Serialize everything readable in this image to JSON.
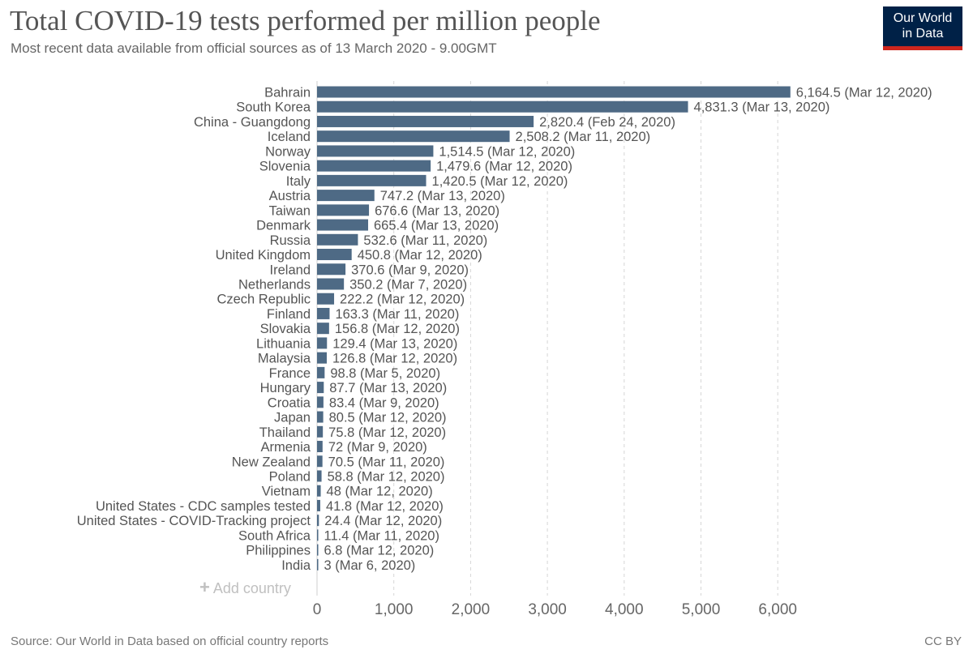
{
  "header": {
    "title": "Total COVID-19 tests performed per million people",
    "subtitle": "Most recent data available from official sources as of 13 March 2020 - 9.00GMT"
  },
  "logo": {
    "line1": "Our World",
    "line2": "in Data",
    "bg_color": "#002147",
    "accent_color": "#ce261e"
  },
  "controls": {
    "add_country_label": "Add country",
    "add_icon": "plus-icon"
  },
  "footer": {
    "source": "Source: Our World in Data based on official country reports",
    "license": "CC BY"
  },
  "chart_data": {
    "type": "bar",
    "orientation": "horizontal",
    "bar_color": "#4e6a85",
    "grid": true,
    "xlim": [
      0,
      6400
    ],
    "xticks": [
      0,
      1000,
      2000,
      3000,
      4000,
      5000,
      6000
    ],
    "xtick_labels": [
      "0",
      "1,000",
      "2,000",
      "3,000",
      "4,000",
      "5,000",
      "6,000"
    ],
    "categories": [
      "Bahrain",
      "South Korea",
      "China - Guangdong",
      "Iceland",
      "Norway",
      "Slovenia",
      "Italy",
      "Austria",
      "Taiwan",
      "Denmark",
      "Russia",
      "United Kingdom",
      "Ireland",
      "Netherlands",
      "Czech Republic",
      "Finland",
      "Slovakia",
      "Lithuania",
      "Malaysia",
      "France",
      "Hungary",
      "Croatia",
      "Japan",
      "Thailand",
      "Armenia",
      "New Zealand",
      "Poland",
      "Vietnam",
      "United States - CDC samples tested",
      "United States - COVID-Tracking project",
      "South Africa",
      "Philippines",
      "India"
    ],
    "values": [
      6164.5,
      4831.3,
      2820.4,
      2508.2,
      1514.5,
      1479.6,
      1420.5,
      747.2,
      676.6,
      665.4,
      532.6,
      450.8,
      370.6,
      350.2,
      222.2,
      163.3,
      156.8,
      129.4,
      126.8,
      98.8,
      87.7,
      83.4,
      80.5,
      75.8,
      72,
      70.5,
      58.8,
      48,
      41.8,
      24.4,
      11.4,
      6.8,
      3
    ],
    "data_labels": [
      "6,164.5 (Mar 12, 2020)",
      "4,831.3 (Mar 13, 2020)",
      "2,820.4 (Feb 24, 2020)",
      "2,508.2 (Mar 11, 2020)",
      "1,514.5 (Mar 12, 2020)",
      "1,479.6 (Mar 12, 2020)",
      "1,420.5 (Mar 12, 2020)",
      "747.2 (Mar 13, 2020)",
      "676.6 (Mar 13, 2020)",
      "665.4 (Mar 13, 2020)",
      "532.6 (Mar 11, 2020)",
      "450.8 (Mar 12, 2020)",
      "370.6 (Mar 9, 2020)",
      "350.2 (Mar 7, 2020)",
      "222.2 (Mar 12, 2020)",
      "163.3 (Mar 11, 2020)",
      "156.8 (Mar 12, 2020)",
      "129.4 (Mar 13, 2020)",
      "126.8 (Mar 12, 2020)",
      "98.8 (Mar 5, 2020)",
      "87.7 (Mar 13, 2020)",
      "83.4 (Mar 9, 2020)",
      "80.5 (Mar 12, 2020)",
      "75.8 (Mar 12, 2020)",
      "72 (Mar 9, 2020)",
      "70.5 (Mar 11, 2020)",
      "58.8 (Mar 12, 2020)",
      "48 (Mar 12, 2020)",
      "41.8 (Mar 12, 2020)",
      "24.4 (Mar 12, 2020)",
      "11.4 (Mar 11, 2020)",
      "6.8 (Mar 12, 2020)",
      "3 (Mar 6, 2020)"
    ]
  }
}
